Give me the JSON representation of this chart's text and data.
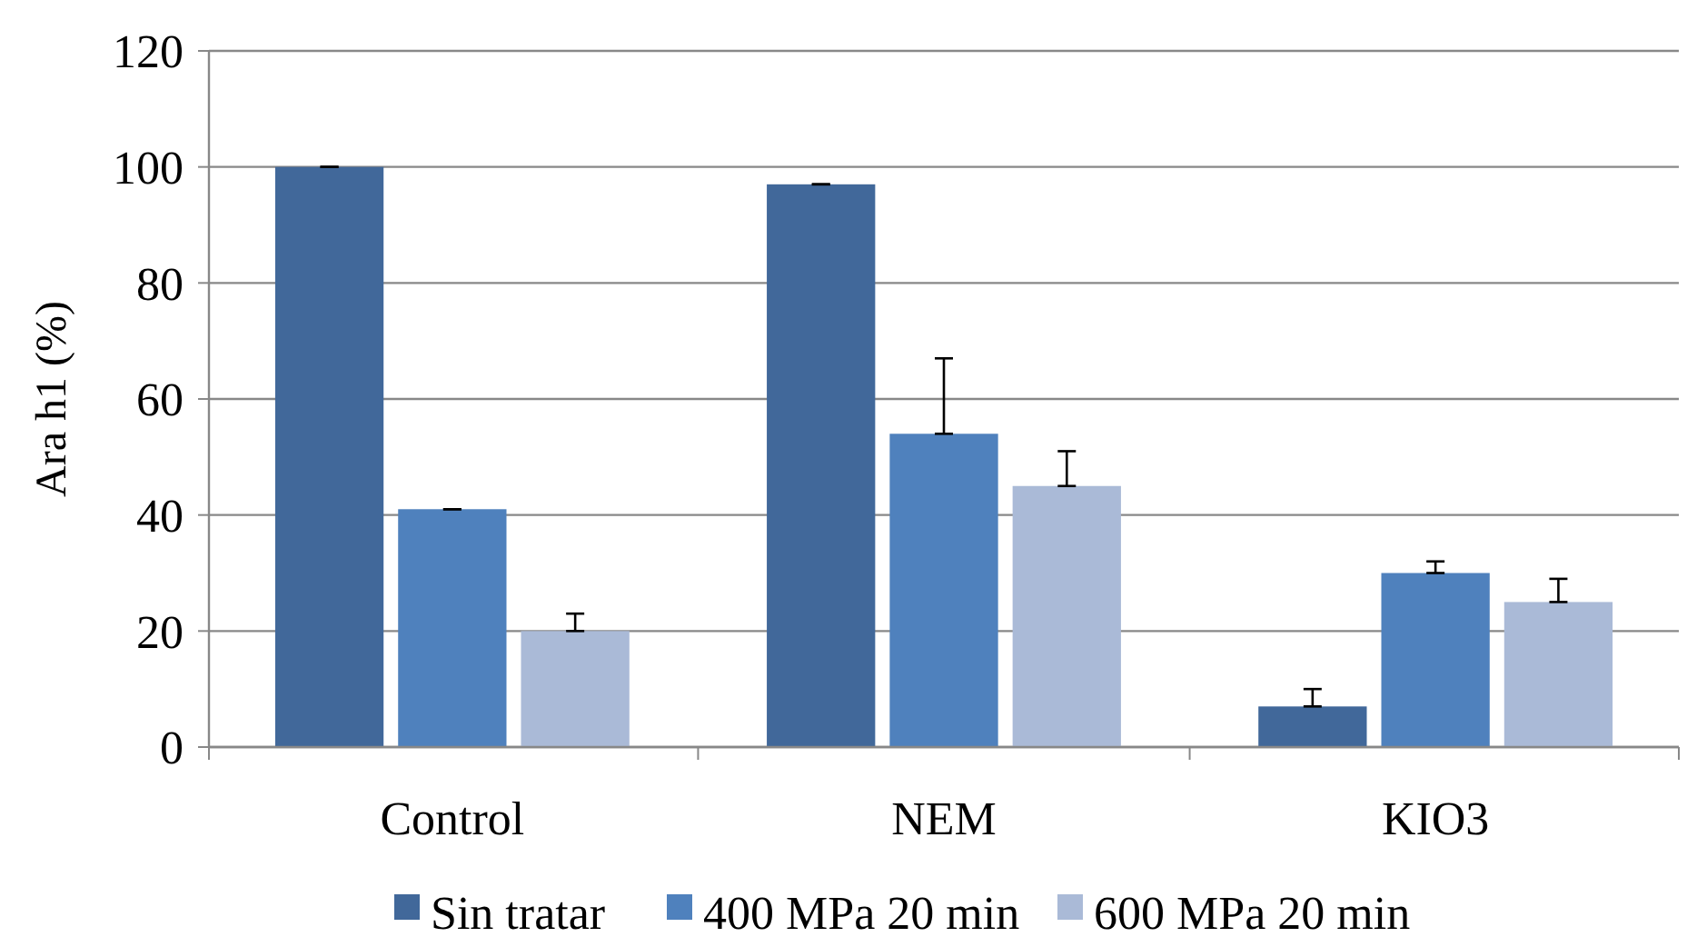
{
  "chart_data": {
    "type": "bar",
    "ylabel": "Ara h1 (%)",
    "categories": [
      "Control",
      "NEM",
      "KIO3"
    ],
    "series": [
      {
        "name": "Sin tratar",
        "color": "#41689a",
        "values": [
          100,
          97,
          7
        ],
        "errors": [
          [
            100,
            100
          ],
          [
            97,
            97
          ],
          [
            7,
            10
          ]
        ]
      },
      {
        "name": "400 MPa 20 min",
        "color": "#4f81bd",
        "values": [
          41,
          54,
          30
        ],
        "errors": [
          [
            41,
            41
          ],
          [
            54,
            67
          ],
          [
            30,
            32
          ]
        ]
      },
      {
        "name": "600 MPa 20 min",
        "color": "#aabad7",
        "values": [
          20,
          45,
          25
        ],
        "errors": [
          [
            20,
            23
          ],
          [
            45,
            51
          ],
          [
            25,
            29
          ]
        ]
      }
    ],
    "ylim": [
      0,
      120
    ],
    "yticks": [
      0,
      20,
      40,
      60,
      80,
      100,
      120
    ],
    "grid": "y",
    "legend": "bottom"
  }
}
